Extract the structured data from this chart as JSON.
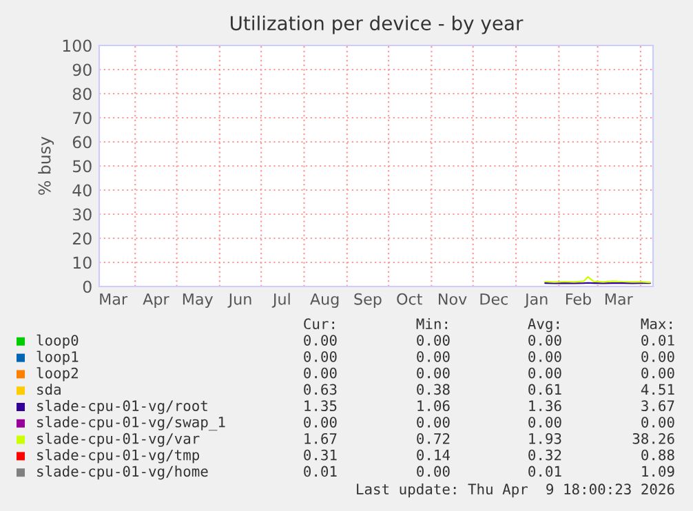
{
  "chart_data": {
    "type": "line",
    "title": "Utilization per device - by year",
    "ylabel": "% busy",
    "x": [
      "2026-01-22",
      "2026-01-29",
      "2026-02-05",
      "2026-02-12",
      "2026-02-19",
      "2026-02-22",
      "2026-02-26",
      "2026-03-05",
      "2026-03-12",
      "2026-03-19",
      "2026-03-26",
      "2026-04-02",
      "2026-04-08"
    ],
    "series": [
      {
        "name": "loop0",
        "color": "#00cc00",
        "values": [
          null,
          null,
          null,
          null,
          null,
          null,
          null,
          null,
          null,
          null,
          null,
          null,
          null
        ]
      },
      {
        "name": "loop1",
        "color": "#0066b3",
        "values": [
          null,
          null,
          null,
          null,
          null,
          null,
          null,
          null,
          null,
          null,
          null,
          null,
          null
        ]
      },
      {
        "name": "loop2",
        "color": "#ff8000",
        "values": [
          null,
          null,
          null,
          null,
          null,
          null,
          null,
          null,
          null,
          null,
          null,
          null,
          null
        ]
      },
      {
        "name": "sda",
        "color": "#ffcc00",
        "values": [
          null,
          null,
          null,
          null,
          null,
          null,
          null,
          null,
          null,
          null,
          null,
          null,
          null
        ]
      },
      {
        "name": "slade-cpu-01-vg/root",
        "color": "#330099",
        "values": [
          1.4,
          1.3,
          1.4,
          1.3,
          1.4,
          1.5,
          1.4,
          1.3,
          1.4,
          1.4,
          1.3,
          1.4,
          1.4
        ]
      },
      {
        "name": "slade-cpu-01-vg/swap_1",
        "color": "#990099",
        "values": [
          null,
          null,
          null,
          null,
          null,
          null,
          null,
          null,
          null,
          null,
          null,
          null,
          null
        ]
      },
      {
        "name": "slade-cpu-01-vg/var",
        "color": "#ccff00",
        "values": [
          2,
          1.8,
          2,
          1.9,
          2.2,
          4,
          2.1,
          1.9,
          2.2,
          2,
          1.9,
          1.9,
          1.7
        ]
      },
      {
        "name": "slade-cpu-01-vg/tmp",
        "color": "#ff0000",
        "values": [
          null,
          null,
          null,
          null,
          null,
          null,
          null,
          null,
          null,
          null,
          null,
          null,
          null
        ]
      },
      {
        "name": "slade-cpu-01-vg/home",
        "color": "#808080",
        "values": [
          null,
          null,
          null,
          null,
          null,
          null,
          null,
          null,
          null,
          null,
          null,
          null,
          null
        ]
      }
    ],
    "xlim": [
      "2025-03-06",
      "2026-04-10"
    ],
    "xticks": [
      {
        "value": "2025-03-16",
        "label": "Mar"
      },
      {
        "value": "2025-04-01",
        "label": null
      },
      {
        "value": "2025-04-16",
        "label": "Apr"
      },
      {
        "value": "2025-05-01",
        "label": null
      },
      {
        "value": "2025-05-16",
        "label": "May"
      },
      {
        "value": "2025-06-01",
        "label": null
      },
      {
        "value": "2025-06-16",
        "label": "Jun"
      },
      {
        "value": "2025-07-01",
        "label": null
      },
      {
        "value": "2025-07-16",
        "label": "Jul"
      },
      {
        "value": "2025-08-01",
        "label": null
      },
      {
        "value": "2025-08-16",
        "label": "Aug"
      },
      {
        "value": "2025-09-01",
        "label": null
      },
      {
        "value": "2025-09-16",
        "label": "Sep"
      },
      {
        "value": "2025-10-01",
        "label": null
      },
      {
        "value": "2025-10-16",
        "label": "Oct"
      },
      {
        "value": "2025-11-01",
        "label": null
      },
      {
        "value": "2025-11-16",
        "label": "Nov"
      },
      {
        "value": "2025-12-01",
        "label": null
      },
      {
        "value": "2025-12-16",
        "label": "Dec"
      },
      {
        "value": "2026-01-01",
        "label": null
      },
      {
        "value": "2026-01-16",
        "label": "Jan"
      },
      {
        "value": "2026-02-01",
        "label": null
      },
      {
        "value": "2026-02-15",
        "label": "Feb"
      },
      {
        "value": "2026-03-01",
        "label": null
      },
      {
        "value": "2026-03-16",
        "label": "Mar"
      },
      {
        "value": "2026-04-01",
        "label": null
      }
    ],
    "ylim": [
      0,
      100
    ],
    "yticks": [
      0,
      10,
      20,
      30,
      40,
      50,
      60,
      70,
      80,
      90,
      100
    ],
    "grid": true,
    "legend": "bottom",
    "marker": "none",
    "line_style": "solid",
    "annotations": [
      "Cur:",
      "Min:",
      "Avg:",
      "Max:",
      "0.00",
      "0.00",
      "0.00",
      "0.01",
      "0.00",
      "0.00",
      "0.00",
      "0.00",
      "0.00",
      "0.00",
      "0.00",
      "0.00",
      "0.63",
      "0.38",
      "0.61",
      "4.51",
      "1.35",
      "1.06",
      "1.36",
      "3.67",
      "0.00",
      "0.00",
      "0.00",
      "0.00",
      "1.67",
      "0.72",
      "1.93",
      "38.26",
      "0.31",
      "0.14",
      "0.32",
      "0.88",
      "0.01",
      "0.00",
      "0.01",
      "1.09",
      "Last update: Thu Apr  9 18:00:23 2026"
    ]
  }
}
